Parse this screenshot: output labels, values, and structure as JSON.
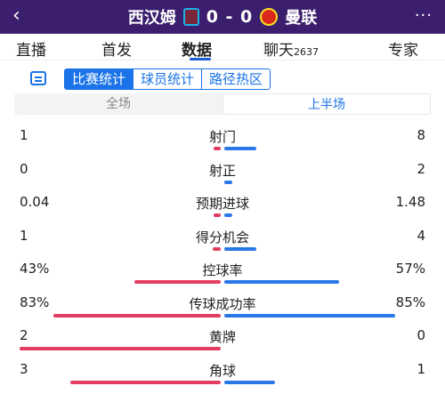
{
  "header": {
    "back_icon": "‹",
    "home_team": "西汉姆",
    "score": "0 - 0",
    "away_team": "曼联",
    "more_icon": "···"
  },
  "tabs": [
    {
      "label": "直播"
    },
    {
      "label": "首发"
    },
    {
      "label": "数据",
      "active": true
    },
    {
      "label": "聊天",
      "count": "2637"
    },
    {
      "label": "专家"
    }
  ],
  "segments": [
    "比赛统计",
    "球员统计",
    "路径热区"
  ],
  "periods": [
    "全场",
    "上半场"
  ],
  "stats": [
    {
      "label": "射门",
      "home": "1",
      "away": "8",
      "home_frac": 0.02,
      "away_frac": 0.16
    },
    {
      "label": "射正",
      "home": "0",
      "away": "2",
      "home_frac": 0.0,
      "away_frac": 0.04
    },
    {
      "label": "预期进球",
      "home": "0.04",
      "away": "1.48",
      "home_frac": 0.01,
      "away_frac": 0.04
    },
    {
      "label": "得分机会",
      "home": "1",
      "away": "4",
      "home_frac": 0.04,
      "away_frac": 0.16
    },
    {
      "label": "控球率",
      "home": "43%",
      "away": "57%",
      "home_frac": 0.43,
      "away_frac": 0.57
    },
    {
      "label": "传球成功率",
      "home": "83%",
      "away": "85%",
      "home_frac": 0.83,
      "away_frac": 0.85
    },
    {
      "label": "黄牌",
      "home": "2",
      "away": "0",
      "home_frac": 1.0,
      "away_frac": 0.0
    },
    {
      "label": "角球",
      "home": "3",
      "away": "1",
      "home_frac": 0.75,
      "away_frac": 0.25
    }
  ]
}
